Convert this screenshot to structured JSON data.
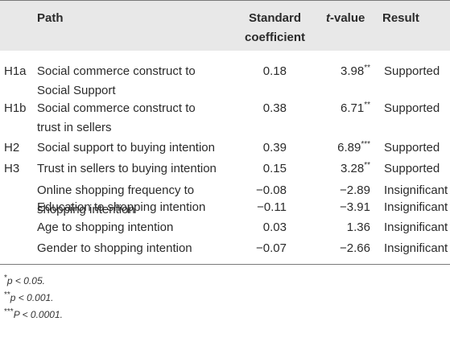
{
  "table": {
    "headers": {
      "path": "Path",
      "coef_line1": "Standard",
      "coef_line2": "coefficient",
      "t_value_letter": "t",
      "t_value_rest": "-value",
      "result": "Result"
    },
    "rows": [
      {
        "id": "H1a",
        "path_line1": "Social commerce construct to",
        "path_line2": "Social Support",
        "coef": "0.18",
        "t_num": "3.98",
        "t_sig": "**",
        "result": "Supported"
      },
      {
        "id": "H1b",
        "path_line1": "Social commerce construct to",
        "path_line2": "trust in sellers",
        "coef": "0.38",
        "t_num": "6.71",
        "t_sig": "**",
        "result": "Supported"
      },
      {
        "id": "H2",
        "path_line1": "Social support to buying intention",
        "path_line2": "",
        "coef": "0.39",
        "t_num": "6.89",
        "t_sig": "***",
        "result": "Supported"
      },
      {
        "id": "H3",
        "path_line1": "Trust in sellers to buying intention",
        "path_line2": "",
        "coef": "0.15",
        "t_num": "3.28",
        "t_sig": "**",
        "result": "Supported"
      },
      {
        "id": "",
        "path_line1": "Online shopping frequency to",
        "path_line2": "shopping intention",
        "coef": "−0.08",
        "t_num": "−2.89",
        "t_sig": "",
        "result": "Insignificant"
      },
      {
        "id": "",
        "path_line1": "Education to shopping intention",
        "path_line2": "",
        "coef": "−0.11",
        "t_num": "−3.91",
        "t_sig": "",
        "result": "Insignificant"
      },
      {
        "id": "",
        "path_line1": "Age to shopping intention",
        "path_line2": "",
        "coef": "0.03",
        "t_num": "1.36",
        "t_sig": "",
        "result": "Insignificant"
      },
      {
        "id": "",
        "path_line1": "Gender to shopping intention",
        "path_line2": "",
        "coef": "−0.07",
        "t_num": "−2.66",
        "t_sig": "",
        "result": "Insignificant"
      }
    ]
  },
  "notes": [
    {
      "mark": "*",
      "text": "p < 0.05."
    },
    {
      "mark": "**",
      "text": "p < 0.001."
    },
    {
      "mark": "***",
      "text": "P < 0.0001."
    }
  ]
}
